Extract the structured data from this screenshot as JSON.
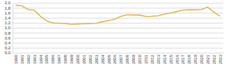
{
  "chart_data": {
    "type": "line",
    "categories": [
      "1990",
      "1991",
      "1992",
      "1993",
      "1994",
      "1995",
      "1996",
      "1997",
      "1998",
      "1999",
      "2000",
      "2001",
      "2002",
      "2003",
      "2004",
      "2005",
      "2006",
      "2007",
      "2008",
      "2009",
      "2010",
      "2011",
      "2012",
      "2013",
      "2014",
      "2015",
      "2016",
      "2017",
      "2018",
      "2019",
      "2020",
      "2021",
      "2022",
      "2023"
    ],
    "values": [
      1.9,
      1.88,
      1.73,
      1.7,
      1.46,
      1.28,
      1.19,
      1.18,
      1.17,
      1.14,
      1.15,
      1.16,
      1.17,
      1.18,
      1.24,
      1.29,
      1.34,
      1.46,
      1.52,
      1.51,
      1.51,
      1.45,
      1.46,
      1.48,
      1.55,
      1.59,
      1.65,
      1.71,
      1.72,
      1.72,
      1.73,
      1.83,
      1.62,
      1.46
    ],
    "color": "#e0b54a",
    "ylim": [
      0,
      2.0
    ],
    "yticks": [
      {
        "value": 0,
        "label": "0,0"
      },
      {
        "value": 0.2,
        "label": "0,2"
      },
      {
        "value": 0.4,
        "label": "0,4"
      },
      {
        "value": 0.6,
        "label": "0,6"
      },
      {
        "value": 0.8,
        "label": "0,8"
      },
      {
        "value": 1.0,
        "label": "1,0"
      },
      {
        "value": 1.2,
        "label": "1,2"
      },
      {
        "value": 1.4,
        "label": "1,4"
      },
      {
        "value": 1.6,
        "label": "1,6"
      },
      {
        "value": 1.8,
        "label": "1,8"
      },
      {
        "value": 2.0,
        "label": "2,0"
      }
    ],
    "grid": true
  }
}
